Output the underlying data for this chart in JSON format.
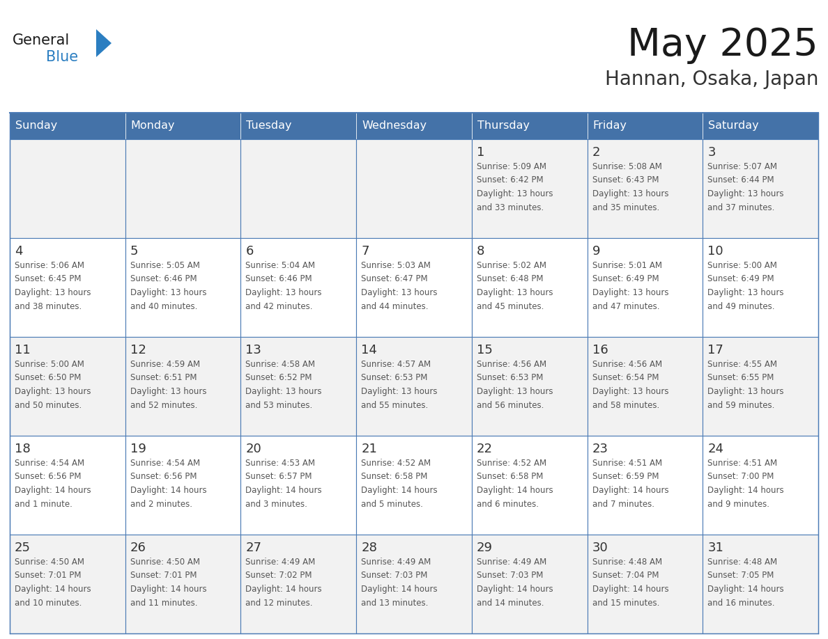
{
  "title": "May 2025",
  "subtitle": "Hannan, Osaka, Japan",
  "days_of_week": [
    "Sunday",
    "Monday",
    "Tuesday",
    "Wednesday",
    "Thursday",
    "Friday",
    "Saturday"
  ],
  "header_bg": "#4472a8",
  "header_text_color": "#ffffff",
  "cell_bg_odd": "#f2f2f2",
  "cell_bg_even": "#ffffff",
  "border_color": "#4a7ab5",
  "title_color": "#1a1a1a",
  "subtitle_color": "#333333",
  "day_number_color": "#333333",
  "cell_text_color": "#555555",
  "logo_general_color": "#1a1a1a",
  "logo_blue_color": "#2b7ec1",
  "calendar_data": [
    [
      null,
      null,
      null,
      null,
      {
        "day": 1,
        "sunrise": "5:09 AM",
        "sunset": "6:42 PM",
        "daylight": "13 hours\nand 33 minutes."
      },
      {
        "day": 2,
        "sunrise": "5:08 AM",
        "sunset": "6:43 PM",
        "daylight": "13 hours\nand 35 minutes."
      },
      {
        "day": 3,
        "sunrise": "5:07 AM",
        "sunset": "6:44 PM",
        "daylight": "13 hours\nand 37 minutes."
      }
    ],
    [
      {
        "day": 4,
        "sunrise": "5:06 AM",
        "sunset": "6:45 PM",
        "daylight": "13 hours\nand 38 minutes."
      },
      {
        "day": 5,
        "sunrise": "5:05 AM",
        "sunset": "6:46 PM",
        "daylight": "13 hours\nand 40 minutes."
      },
      {
        "day": 6,
        "sunrise": "5:04 AM",
        "sunset": "6:46 PM",
        "daylight": "13 hours\nand 42 minutes."
      },
      {
        "day": 7,
        "sunrise": "5:03 AM",
        "sunset": "6:47 PM",
        "daylight": "13 hours\nand 44 minutes."
      },
      {
        "day": 8,
        "sunrise": "5:02 AM",
        "sunset": "6:48 PM",
        "daylight": "13 hours\nand 45 minutes."
      },
      {
        "day": 9,
        "sunrise": "5:01 AM",
        "sunset": "6:49 PM",
        "daylight": "13 hours\nand 47 minutes."
      },
      {
        "day": 10,
        "sunrise": "5:00 AM",
        "sunset": "6:49 PM",
        "daylight": "13 hours\nand 49 minutes."
      }
    ],
    [
      {
        "day": 11,
        "sunrise": "5:00 AM",
        "sunset": "6:50 PM",
        "daylight": "13 hours\nand 50 minutes."
      },
      {
        "day": 12,
        "sunrise": "4:59 AM",
        "sunset": "6:51 PM",
        "daylight": "13 hours\nand 52 minutes."
      },
      {
        "day": 13,
        "sunrise": "4:58 AM",
        "sunset": "6:52 PM",
        "daylight": "13 hours\nand 53 minutes."
      },
      {
        "day": 14,
        "sunrise": "4:57 AM",
        "sunset": "6:53 PM",
        "daylight": "13 hours\nand 55 minutes."
      },
      {
        "day": 15,
        "sunrise": "4:56 AM",
        "sunset": "6:53 PM",
        "daylight": "13 hours\nand 56 minutes."
      },
      {
        "day": 16,
        "sunrise": "4:56 AM",
        "sunset": "6:54 PM",
        "daylight": "13 hours\nand 58 minutes."
      },
      {
        "day": 17,
        "sunrise": "4:55 AM",
        "sunset": "6:55 PM",
        "daylight": "13 hours\nand 59 minutes."
      }
    ],
    [
      {
        "day": 18,
        "sunrise": "4:54 AM",
        "sunset": "6:56 PM",
        "daylight": "14 hours\nand 1 minute."
      },
      {
        "day": 19,
        "sunrise": "4:54 AM",
        "sunset": "6:56 PM",
        "daylight": "14 hours\nand 2 minutes."
      },
      {
        "day": 20,
        "sunrise": "4:53 AM",
        "sunset": "6:57 PM",
        "daylight": "14 hours\nand 3 minutes."
      },
      {
        "day": 21,
        "sunrise": "4:52 AM",
        "sunset": "6:58 PM",
        "daylight": "14 hours\nand 5 minutes."
      },
      {
        "day": 22,
        "sunrise": "4:52 AM",
        "sunset": "6:58 PM",
        "daylight": "14 hours\nand 6 minutes."
      },
      {
        "day": 23,
        "sunrise": "4:51 AM",
        "sunset": "6:59 PM",
        "daylight": "14 hours\nand 7 minutes."
      },
      {
        "day": 24,
        "sunrise": "4:51 AM",
        "sunset": "7:00 PM",
        "daylight": "14 hours\nand 9 minutes."
      }
    ],
    [
      {
        "day": 25,
        "sunrise": "4:50 AM",
        "sunset": "7:01 PM",
        "daylight": "14 hours\nand 10 minutes."
      },
      {
        "day": 26,
        "sunrise": "4:50 AM",
        "sunset": "7:01 PM",
        "daylight": "14 hours\nand 11 minutes."
      },
      {
        "day": 27,
        "sunrise": "4:49 AM",
        "sunset": "7:02 PM",
        "daylight": "14 hours\nand 12 minutes."
      },
      {
        "day": 28,
        "sunrise": "4:49 AM",
        "sunset": "7:03 PM",
        "daylight": "14 hours\nand 13 minutes."
      },
      {
        "day": 29,
        "sunrise": "4:49 AM",
        "sunset": "7:03 PM",
        "daylight": "14 hours\nand 14 minutes."
      },
      {
        "day": 30,
        "sunrise": "4:48 AM",
        "sunset": "7:04 PM",
        "daylight": "14 hours\nand 15 minutes."
      },
      {
        "day": 31,
        "sunrise": "4:48 AM",
        "sunset": "7:05 PM",
        "daylight": "14 hours\nand 16 minutes."
      }
    ]
  ]
}
